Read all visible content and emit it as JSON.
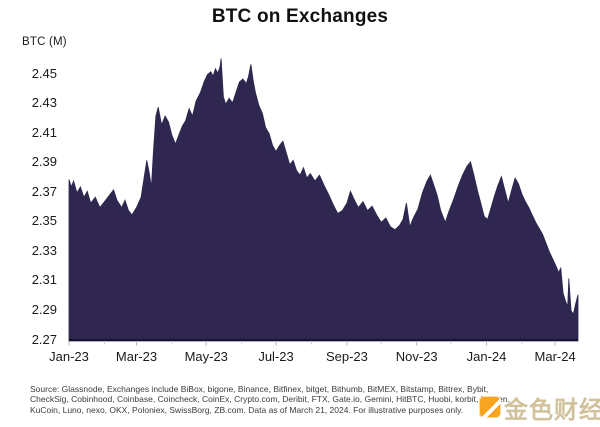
{
  "page": {
    "title": "BTC on Exchanges"
  },
  "colors": {
    "area": "#2f2750",
    "axis_line": "#191332",
    "major_tick": "#b5b5b5",
    "minor_tick": "#cccccc",
    "text": "#1c1c1c",
    "watermark_text": "#cebd93",
    "watermark_logo": "#f8a41e"
  },
  "chart_data": {
    "type": "area",
    "title": "BTC on Exchanges",
    "ylabel": "BTC (M)",
    "xlabel": "",
    "grid": false,
    "legend": "none",
    "x_domain": [
      "2023-01-01",
      "2024-03-21"
    ],
    "ylim": [
      2.27,
      2.46
    ],
    "y_ticks": [
      "2.45",
      "2.43",
      "2.41",
      "2.39",
      "2.37",
      "2.35",
      "2.33",
      "2.31",
      "2.29",
      "2.27"
    ],
    "x_ticks": [
      {
        "label": "Jan-23",
        "date": "2023-01-01"
      },
      {
        "label": "Mar-23",
        "date": "2023-03-01"
      },
      {
        "label": "May-23",
        "date": "2023-05-01"
      },
      {
        "label": "Jul-23",
        "date": "2023-07-01"
      },
      {
        "label": "Sep-23",
        "date": "2023-09-01"
      },
      {
        "label": "Nov-23",
        "date": "2023-11-01"
      },
      {
        "label": "Jan-24",
        "date": "2024-01-01"
      },
      {
        "label": "Mar-24",
        "date": "2024-03-01"
      }
    ],
    "x_minor_tick_dates": [
      "2023-02-01",
      "2023-04-01",
      "2023-06-01",
      "2023-08-01",
      "2023-10-01",
      "2023-12-01",
      "2024-02-01"
    ],
    "series": [
      {
        "name": "BTC on Exchanges (M)",
        "points": [
          [
            "2023-01-01",
            2.378
          ],
          [
            "2023-01-03",
            2.373
          ],
          [
            "2023-01-05",
            2.377
          ],
          [
            "2023-01-08",
            2.369
          ],
          [
            "2023-01-11",
            2.373
          ],
          [
            "2023-01-14",
            2.366
          ],
          [
            "2023-01-17",
            2.37
          ],
          [
            "2023-01-20",
            2.362
          ],
          [
            "2023-01-24",
            2.366
          ],
          [
            "2023-01-28",
            2.359
          ],
          [
            "2023-02-01",
            2.363
          ],
          [
            "2023-02-05",
            2.367
          ],
          [
            "2023-02-09",
            2.371
          ],
          [
            "2023-02-12",
            2.364
          ],
          [
            "2023-02-16",
            2.359
          ],
          [
            "2023-02-19",
            2.364
          ],
          [
            "2023-02-22",
            2.357
          ],
          [
            "2023-02-25",
            2.354
          ],
          [
            "2023-03-01",
            2.359
          ],
          [
            "2023-03-05",
            2.366
          ],
          [
            "2023-03-08",
            2.381
          ],
          [
            "2023-03-10",
            2.391
          ],
          [
            "2023-03-12",
            2.383
          ],
          [
            "2023-03-14",
            2.373
          ],
          [
            "2023-03-16",
            2.399
          ],
          [
            "2023-03-18",
            2.421
          ],
          [
            "2023-03-20",
            2.427
          ],
          [
            "2023-03-23",
            2.415
          ],
          [
            "2023-03-26",
            2.421
          ],
          [
            "2023-03-29",
            2.417
          ],
          [
            "2023-04-01",
            2.408
          ],
          [
            "2023-04-04",
            2.402
          ],
          [
            "2023-04-07",
            2.408
          ],
          [
            "2023-04-10",
            2.414
          ],
          [
            "2023-04-13",
            2.418
          ],
          [
            "2023-04-16",
            2.426
          ],
          [
            "2023-04-19",
            2.421
          ],
          [
            "2023-04-22",
            2.431
          ],
          [
            "2023-04-26",
            2.437
          ],
          [
            "2023-04-29",
            2.444
          ],
          [
            "2023-05-02",
            2.449
          ],
          [
            "2023-05-05",
            2.451
          ],
          [
            "2023-05-07",
            2.448
          ],
          [
            "2023-05-09",
            2.453
          ],
          [
            "2023-05-11",
            2.45
          ],
          [
            "2023-05-13",
            2.454
          ],
          [
            "2023-05-14",
            2.46
          ],
          [
            "2023-05-16",
            2.434
          ],
          [
            "2023-05-18",
            2.429
          ],
          [
            "2023-05-21",
            2.433
          ],
          [
            "2023-05-24",
            2.43
          ],
          [
            "2023-05-27",
            2.437
          ],
          [
            "2023-05-30",
            2.444
          ],
          [
            "2023-06-02",
            2.446
          ],
          [
            "2023-06-05",
            2.443
          ],
          [
            "2023-06-07",
            2.448
          ],
          [
            "2023-06-09",
            2.456
          ],
          [
            "2023-06-11",
            2.445
          ],
          [
            "2023-06-13",
            2.437
          ],
          [
            "2023-06-16",
            2.428
          ],
          [
            "2023-06-19",
            2.423
          ],
          [
            "2023-06-22",
            2.413
          ],
          [
            "2023-06-25",
            2.409
          ],
          [
            "2023-06-28",
            2.401
          ],
          [
            "2023-07-01",
            2.397
          ],
          [
            "2023-07-04",
            2.401
          ],
          [
            "2023-07-07",
            2.404
          ],
          [
            "2023-07-10",
            2.396
          ],
          [
            "2023-07-13",
            2.388
          ],
          [
            "2023-07-16",
            2.391
          ],
          [
            "2023-07-19",
            2.384
          ],
          [
            "2023-07-22",
            2.381
          ],
          [
            "2023-07-25",
            2.386
          ],
          [
            "2023-07-28",
            2.379
          ],
          [
            "2023-07-31",
            2.382
          ],
          [
            "2023-08-04",
            2.377
          ],
          [
            "2023-08-08",
            2.381
          ],
          [
            "2023-08-12",
            2.374
          ],
          [
            "2023-08-16",
            2.368
          ],
          [
            "2023-08-20",
            2.361
          ],
          [
            "2023-08-24",
            2.355
          ],
          [
            "2023-08-28",
            2.357
          ],
          [
            "2023-09-01",
            2.362
          ],
          [
            "2023-09-04",
            2.37
          ],
          [
            "2023-09-07",
            2.365
          ],
          [
            "2023-09-11",
            2.359
          ],
          [
            "2023-09-15",
            2.363
          ],
          [
            "2023-09-19",
            2.357
          ],
          [
            "2023-09-23",
            2.36
          ],
          [
            "2023-09-27",
            2.354
          ],
          [
            "2023-10-01",
            2.349
          ],
          [
            "2023-10-05",
            2.352
          ],
          [
            "2023-10-09",
            2.346
          ],
          [
            "2023-10-13",
            2.344
          ],
          [
            "2023-10-17",
            2.347
          ],
          [
            "2023-10-20",
            2.351
          ],
          [
            "2023-10-23",
            2.362
          ],
          [
            "2023-10-26",
            2.346
          ],
          [
            "2023-10-29",
            2.352
          ],
          [
            "2023-11-02",
            2.358
          ],
          [
            "2023-11-06",
            2.369
          ],
          [
            "2023-11-10",
            2.377
          ],
          [
            "2023-11-13",
            2.381
          ],
          [
            "2023-11-16",
            2.374
          ],
          [
            "2023-11-19",
            2.367
          ],
          [
            "2023-11-22",
            2.357
          ],
          [
            "2023-11-26",
            2.349
          ],
          [
            "2023-11-29",
            2.356
          ],
          [
            "2023-12-03",
            2.364
          ],
          [
            "2023-12-07",
            2.373
          ],
          [
            "2023-12-11",
            2.381
          ],
          [
            "2023-12-15",
            2.387
          ],
          [
            "2023-12-18",
            2.39
          ],
          [
            "2023-12-21",
            2.381
          ],
          [
            "2023-12-24",
            2.371
          ],
          [
            "2023-12-27",
            2.362
          ],
          [
            "2023-12-30",
            2.353
          ],
          [
            "2024-01-02",
            2.351
          ],
          [
            "2024-01-05",
            2.359
          ],
          [
            "2024-01-08",
            2.367
          ],
          [
            "2024-01-11",
            2.374
          ],
          [
            "2024-01-14",
            2.38
          ],
          [
            "2024-01-17",
            2.371
          ],
          [
            "2024-01-20",
            2.362
          ],
          [
            "2024-01-23",
            2.371
          ],
          [
            "2024-01-26",
            2.379
          ],
          [
            "2024-01-29",
            2.375
          ],
          [
            "2024-02-01",
            2.368
          ],
          [
            "2024-02-04",
            2.363
          ],
          [
            "2024-02-07",
            2.359
          ],
          [
            "2024-02-10",
            2.354
          ],
          [
            "2024-02-13",
            2.349
          ],
          [
            "2024-02-16",
            2.345
          ],
          [
            "2024-02-19",
            2.341
          ],
          [
            "2024-02-22",
            2.335
          ],
          [
            "2024-02-25",
            2.329
          ],
          [
            "2024-02-28",
            2.324
          ],
          [
            "2024-03-02",
            2.319
          ],
          [
            "2024-03-04",
            2.315
          ],
          [
            "2024-03-06",
            2.318
          ],
          [
            "2024-03-08",
            2.301
          ],
          [
            "2024-03-10",
            2.296
          ],
          [
            "2024-03-12",
            2.292
          ],
          [
            "2024-03-13",
            2.311
          ],
          [
            "2024-03-15",
            2.289
          ],
          [
            "2024-03-17",
            2.287
          ],
          [
            "2024-03-19",
            2.294
          ],
          [
            "2024-03-21",
            2.3
          ]
        ]
      }
    ]
  },
  "source_note": {
    "line1": "Source: Glassnode, Exchanges include BiBox, bigone, Binance, Bitfinex, bitget, Bithumb, BitMEX, Bitstamp, Bittrex, Bybit,",
    "line2": "CheckSig, Cobinhood, Coinbase, Coincheck, CoinEx, Crypto.com, Deribit, FTX, Gate.io, Gemini, HitBTC, Huobi, korbit, Kraken,",
    "line3": "KuCoin, Luno, nexo, OKX, Poloniex, SwissBorg, ZB.com. Data as of March 21, 2024. For illustrative purposes only."
  },
  "watermark": {
    "text": "金色财经"
  }
}
